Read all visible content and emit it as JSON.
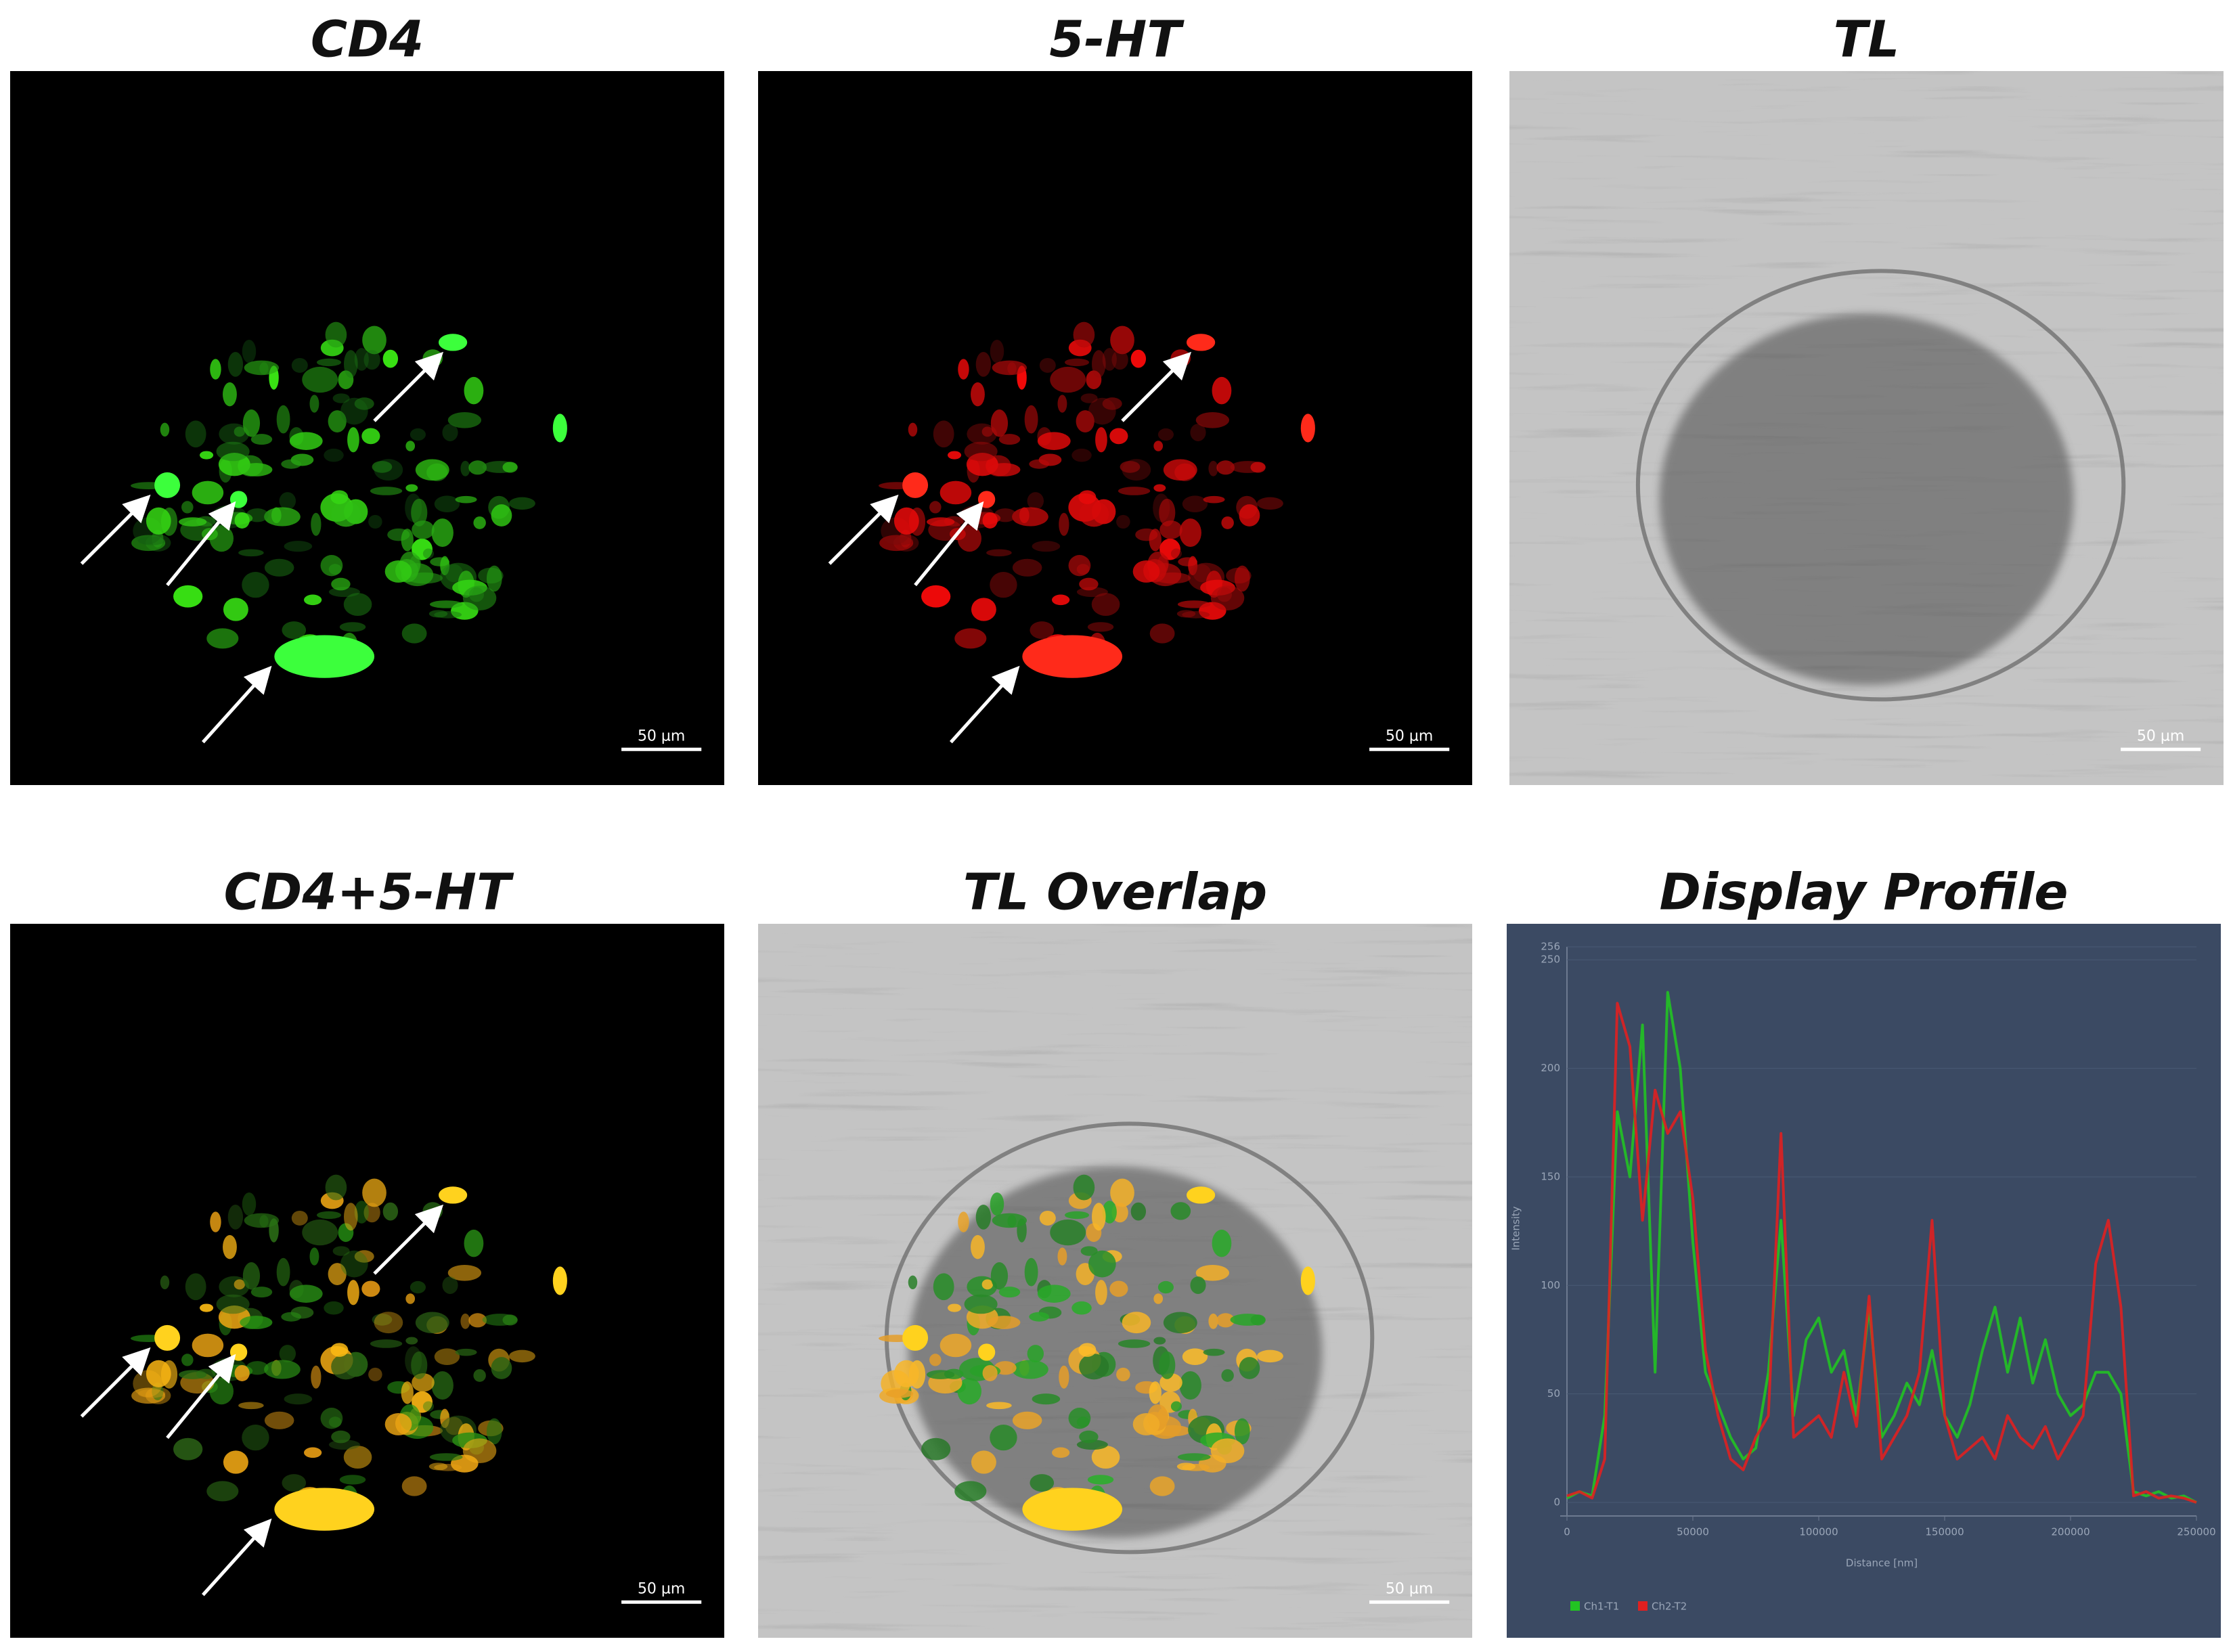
{
  "panels": [
    {
      "title": "CD4",
      "scale_bar": "50 µm"
    },
    {
      "title": "5-HT",
      "scale_bar": "50 µm"
    },
    {
      "title": "TL",
      "scale_bar": "50 µm"
    },
    {
      "title": "CD4+5-HT",
      "scale_bar": "50 µm"
    },
    {
      "title": "TL Overlap",
      "scale_bar": "50 µm"
    }
  ],
  "chart_data": {
    "type": "line",
    "title": "Display Profile",
    "x_label": "Distance [nm]",
    "y_label": "Intensity",
    "x": [
      0,
      5000,
      10000,
      15000,
      20000,
      25000,
      30000,
      35000,
      40000,
      45000,
      50000,
      55000,
      60000,
      65000,
      70000,
      75000,
      80000,
      85000,
      90000,
      95000,
      100000,
      105000,
      110000,
      115000,
      120000,
      125000,
      130000,
      135000,
      140000,
      145000,
      150000,
      155000,
      160000,
      165000,
      170000,
      175000,
      180000,
      185000,
      190000,
      195000,
      200000,
      205000,
      210000,
      215000,
      220000,
      225000,
      230000,
      235000,
      240000,
      245000,
      250000
    ],
    "series": [
      {
        "name": "Ch1-T1",
        "color": "#22c322",
        "values": [
          2,
          5,
          3,
          40,
          180,
          150,
          220,
          60,
          235,
          200,
          120,
          60,
          45,
          30,
          20,
          25,
          60,
          130,
          40,
          75,
          85,
          60,
          70,
          40,
          90,
          30,
          40,
          55,
          45,
          70,
          40,
          30,
          45,
          70,
          90,
          60,
          85,
          55,
          75,
          50,
          40,
          45,
          60,
          60,
          50,
          5,
          3,
          5,
          2,
          3,
          0
        ]
      },
      {
        "name": "Ch2-T2",
        "color": "#e02020",
        "values": [
          3,
          5,
          2,
          20,
          230,
          210,
          130,
          190,
          170,
          180,
          140,
          70,
          40,
          20,
          15,
          30,
          40,
          170,
          30,
          35,
          40,
          30,
          60,
          35,
          95,
          20,
          30,
          40,
          60,
          130,
          40,
          20,
          25,
          30,
          20,
          40,
          30,
          25,
          35,
          20,
          30,
          40,
          110,
          130,
          90,
          3,
          5,
          2,
          3,
          2,
          0
        ]
      }
    ],
    "xlim": [
      0,
      250000
    ],
    "xticks": [
      0,
      50000,
      100000,
      150000,
      200000,
      250000
    ],
    "ylim": [
      0,
      256
    ],
    "yticks": [
      0,
      50,
      100,
      150,
      200,
      250,
      256
    ],
    "grid": true
  }
}
